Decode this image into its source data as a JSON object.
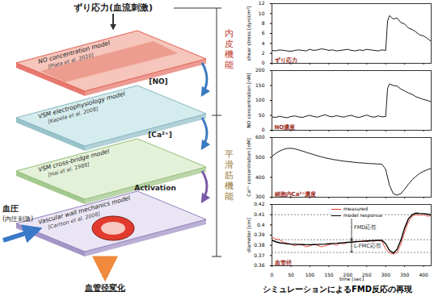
{
  "diagram": {
    "input_top": "ずり応力(血流刺激)",
    "layers": [
      {
        "label": "NO concentration model",
        "ref": "[Plata et al. 2010]"
      },
      {
        "label": "VSM electrophysiology model",
        "ref": "[Kapela et al. 2008]"
      },
      {
        "label": "VSM cross-bridge model",
        "ref": "[Hai et al. 1988]"
      },
      {
        "label": "Vascular wall mechanics model",
        "ref": "[Carlson et al. 2008]"
      }
    ],
    "signals": [
      "[NO]",
      "[Ca²⁺]",
      "Activation"
    ],
    "groups": [
      {
        "label": "内皮機能",
        "color": "#c0392b"
      },
      {
        "label": "平滑筋機能",
        "color": "#9a7a3a"
      }
    ],
    "input_left": {
      "label": "血圧",
      "sublabel": "(内圧刺激)"
    },
    "output": "血管径変化"
  },
  "caption": "シミュレーションによるFMD反応の再現",
  "chart_data": [
    {
      "type": "line",
      "title": "ずり応力",
      "y_label": "shear stress [dyn/cm²]",
      "x": [
        0,
        10,
        20,
        30,
        40,
        50,
        60,
        70,
        80,
        90,
        100,
        110,
        120,
        130,
        140,
        150,
        160,
        170,
        180,
        190,
        200,
        210,
        220,
        230,
        240,
        250,
        260,
        270,
        280,
        290,
        300,
        305,
        310,
        320,
        330,
        340,
        350,
        360,
        370,
        380,
        390,
        400,
        410,
        420
      ],
      "series": [
        {
          "color": "#000000",
          "values": [
            2.6,
            2.5,
            2.7,
            2.6,
            2.5,
            2.4,
            2.6,
            2.7,
            2.6,
            2.5,
            2.8,
            2.6,
            2.7,
            2.9,
            2.8,
            2.6,
            2.7,
            2.5,
            2.6,
            2.7,
            2.8,
            2.6,
            2.5,
            2.7,
            2.6,
            2.8,
            2.7,
            2.6,
            2.5,
            2.7,
            2.6,
            8.5,
            9.6,
            8.9,
            9.1,
            8.2,
            7.9,
            7.1,
            6.8,
            6.3,
            5.7,
            5.5,
            5.0,
            4.4
          ]
        }
      ],
      "xlim": [
        0,
        420
      ],
      "xticks": [
        0,
        50,
        100,
        150,
        200,
        250,
        300,
        350,
        400
      ],
      "ylim": [
        0,
        12
      ],
      "yticks": [
        0,
        2,
        4,
        6,
        8,
        10,
        12
      ],
      "tick_labels": "y"
    },
    {
      "type": "line",
      "title": "NO濃度",
      "y_label": "NO concentration [nM]",
      "x": [
        0,
        10,
        20,
        30,
        40,
        50,
        60,
        70,
        80,
        90,
        100,
        110,
        120,
        130,
        140,
        150,
        160,
        170,
        180,
        190,
        200,
        210,
        220,
        230,
        240,
        250,
        260,
        270,
        280,
        290,
        300,
        305,
        310,
        320,
        330,
        340,
        350,
        360,
        370,
        380,
        390,
        400,
        410,
        420
      ],
      "series": [
        {
          "color": "#000000",
          "values": [
            45,
            43,
            47,
            44,
            42,
            46,
            48,
            45,
            43,
            47,
            50,
            46,
            44,
            48,
            52,
            47,
            45,
            49,
            46,
            44,
            48,
            50,
            45,
            43,
            47,
            51,
            46,
            44,
            48,
            45,
            46,
            140,
            155,
            150,
            148,
            138,
            132,
            125,
            120,
            112,
            108,
            103,
            100,
            95
          ]
        }
      ],
      "xlim": [
        0,
        420
      ],
      "xticks": [
        0,
        50,
        100,
        150,
        200,
        250,
        300,
        350,
        400
      ],
      "ylim": [
        0,
        200
      ],
      "yticks": [
        0,
        50,
        100,
        150,
        200
      ],
      "tick_labels": "y"
    },
    {
      "type": "line",
      "title": "細胞内Ca²⁺濃度",
      "y_label": "Ca²⁺ concentration [nM]",
      "x": [
        0,
        10,
        20,
        30,
        40,
        50,
        60,
        70,
        80,
        90,
        100,
        110,
        120,
        130,
        140,
        150,
        160,
        170,
        180,
        190,
        200,
        210,
        220,
        230,
        240,
        250,
        260,
        270,
        280,
        290,
        300,
        310,
        320,
        330,
        340,
        350,
        360,
        370,
        380,
        390,
        400,
        410,
        420
      ],
      "series": [
        {
          "color": "#000000",
          "values": [
            505,
            520,
            532,
            540,
            545,
            546,
            543,
            538,
            532,
            526,
            520,
            514,
            508,
            503,
            498,
            494,
            490,
            487,
            484,
            481,
            479,
            477,
            475,
            473,
            472,
            470,
            469,
            468,
            467,
            466,
            440,
            360,
            318,
            310,
            318,
            340,
            365,
            388,
            405,
            420,
            430,
            438,
            445
          ]
        }
      ],
      "xlim": [
        0,
        420
      ],
      "xticks": [
        0,
        50,
        100,
        150,
        200,
        250,
        300,
        350,
        400
      ],
      "ylim": [
        300,
        600
      ],
      "yticks": [
        300,
        400,
        500,
        600
      ],
      "tick_labels": "y"
    },
    {
      "type": "line",
      "title": "血管径",
      "y_label": "diameter [cm]",
      "x_label": "time [sec]",
      "x": [
        0,
        10,
        20,
        30,
        40,
        50,
        60,
        70,
        80,
        90,
        100,
        110,
        120,
        130,
        140,
        150,
        160,
        170,
        180,
        190,
        200,
        210,
        220,
        230,
        240,
        250,
        260,
        270,
        280,
        290,
        300,
        310,
        320,
        330,
        340,
        350,
        360,
        370,
        380,
        390,
        400,
        410,
        420
      ],
      "series": [
        {
          "name": "measured",
          "color": "#e8382c",
          "values": [
            0.388,
            0.386,
            0.3855,
            0.383,
            0.382,
            0.381,
            0.3795,
            0.381,
            0.3805,
            0.3785,
            0.3795,
            0.381,
            0.38,
            0.3785,
            0.3795,
            0.3805,
            0.3815,
            0.38,
            0.382,
            0.3815,
            0.383,
            0.3825,
            0.384,
            0.3835,
            0.3845,
            0.3835,
            0.3845,
            0.384,
            0.385,
            0.384,
            0.3765,
            0.3725,
            0.3715,
            0.373,
            0.381,
            0.393,
            0.403,
            0.4085,
            0.41,
            0.4095,
            0.41,
            0.4085,
            0.409
          ]
        },
        {
          "name": "model response",
          "color": "#000000",
          "values": [
            0.385,
            0.3835,
            0.3825,
            0.382,
            0.3815,
            0.3812,
            0.381,
            0.3808,
            0.3807,
            0.3806,
            0.3806,
            0.3807,
            0.3808,
            0.381,
            0.3812,
            0.3815,
            0.3818,
            0.382,
            0.3823,
            0.3826,
            0.3829,
            0.3832,
            0.3835,
            0.3838,
            0.384,
            0.3843,
            0.3845,
            0.3847,
            0.3849,
            0.385,
            0.3815,
            0.375,
            0.3725,
            0.376,
            0.385,
            0.397,
            0.406,
            0.41,
            0.4115,
            0.4112,
            0.411,
            0.4105,
            0.41
          ]
        }
      ],
      "reference_lines": [
        0.41,
        0.3855,
        0.373
      ],
      "annotations": [
        {
          "text": "FMD応答",
          "from": 0.3855,
          "to": 0.41
        },
        {
          "text": "L-FMC応答",
          "from": 0.373,
          "to": 0.3855
        }
      ],
      "xlim": [
        0,
        420
      ],
      "xticks": [
        0,
        50,
        100,
        150,
        200,
        250,
        300,
        350,
        400
      ],
      "ylim": [
        0.36,
        0.42
      ],
      "yticks": [
        0.36,
        0.37,
        0.38,
        0.39,
        0.4,
        0.41,
        0.42
      ],
      "legend": "top",
      "tick_labels": true
    }
  ]
}
